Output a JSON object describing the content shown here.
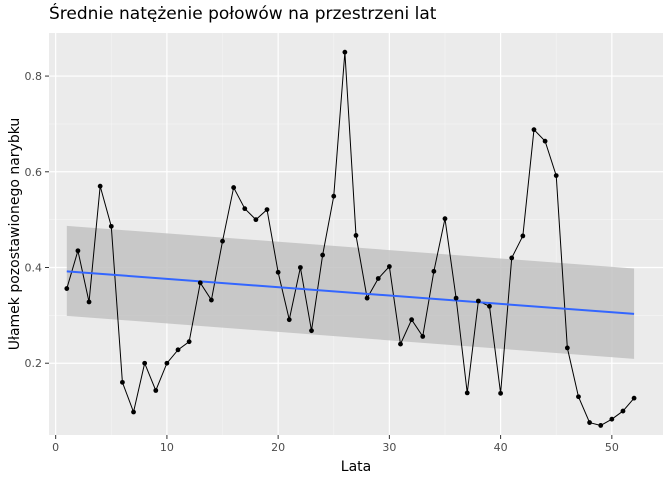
{
  "chart_data": {
    "type": "line",
    "title": "Średnie natężenie połowów na przestrzeni lat",
    "xlabel": "Lata",
    "ylabel": "Ułamek pozostawionego narybku",
    "xlim": [
      -0.6,
      54.6
    ],
    "ylim": [
      0.05,
      0.89
    ],
    "x_ticks": [
      0,
      10,
      20,
      30,
      40,
      50
    ],
    "y_ticks": [
      0.2,
      0.4,
      0.6,
      0.8
    ],
    "x_tick_labels": [
      "0",
      "10",
      "20",
      "30",
      "40",
      "50"
    ],
    "y_tick_labels": [
      "0.2",
      "0.4",
      "0.6",
      "0.8"
    ],
    "grid": true,
    "series": [
      {
        "x": [
          1,
          2,
          3,
          4,
          5,
          6,
          7,
          8,
          9,
          10,
          11,
          12,
          13,
          14,
          15,
          16,
          17,
          18,
          19,
          20,
          21,
          22,
          23,
          24,
          25,
          26,
          27,
          28,
          29,
          30,
          31,
          32,
          33,
          34,
          35,
          36,
          37,
          38,
          39,
          40,
          41,
          42,
          43,
          44,
          45,
          46,
          47,
          48,
          49,
          50,
          51,
          52
        ],
        "values": [
          0.356,
          0.435,
          0.328,
          0.57,
          0.486,
          0.16,
          0.098,
          0.2,
          0.143,
          0.2,
          0.228,
          0.245,
          0.368,
          0.332,
          0.455,
          0.567,
          0.523,
          0.5,
          0.521,
          0.39,
          0.291,
          0.4,
          0.268,
          0.426,
          0.549,
          0.85,
          0.467,
          0.336,
          0.377,
          0.402,
          0.24,
          0.291,
          0.256,
          0.392,
          0.502,
          0.336,
          0.138,
          0.33,
          0.319,
          0.137,
          0.42,
          0.466,
          0.688,
          0.664,
          0.592,
          0.232,
          0.13,
          0.076,
          0.07,
          0.083,
          0.1,
          0.127
        ],
        "color": "#000000"
      }
    ],
    "trend": {
      "x": [
        1,
        52
      ],
      "values": [
        0.392,
        0.303
      ],
      "ci_lower": [
        0.299,
        0.209
      ],
      "ci_upper": [
        0.487,
        0.398
      ],
      "color": "#3366FF",
      "band_color": "#C2C2C2"
    },
    "colors": {
      "panel": "#EBEBEB",
      "grid_major": "#FFFFFF",
      "axis_text": "#4D4D4D"
    }
  }
}
